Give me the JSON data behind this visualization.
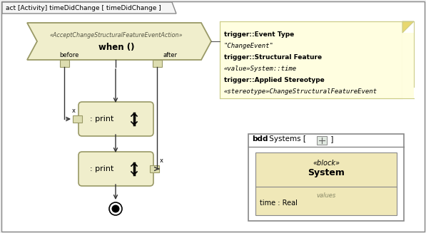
{
  "bg_color": "#f0f0f0",
  "frame_bg": "#ffffff",
  "frame_border": "#888888",
  "frame_title": "act [Activity] timeDidChange [ timeDidChange ]",
  "accept_action_text_line1": "«AcceptChangeStructuralFeatureEventAction»",
  "accept_action_text_line2": "when ()",
  "accept_shape_color": "#f0eecc",
  "accept_shape_border": "#999966",
  "note_bg": "#fffee0",
  "note_border": "#cccc88",
  "note_fold_color": "#e8d870",
  "note_lines": [
    [
      "trigger::Event Type",
      true
    ],
    [
      "\"ChangeEvent\"",
      false
    ],
    [
      "trigger::Structural Feature",
      true
    ],
    [
      "«value»System::time",
      false
    ],
    [
      "trigger::Applied Stereotype",
      true
    ],
    [
      "«stereotype»ChangeStructuralFeatureEvent",
      false
    ]
  ],
  "print_box_color": "#f0eecc",
  "print_box_border": "#999966",
  "pin_color": "#ddddb0",
  "pin_border": "#999966",
  "bdd_box_bg": "#ffffff",
  "bdd_box_border": "#888888",
  "block_bg": "#f0e8b8",
  "block_border": "#888888",
  "block_stereotype": "«block»",
  "block_name": "System",
  "block_section": "values",
  "block_attr": "time : Real",
  "arrow_color": "#333333"
}
